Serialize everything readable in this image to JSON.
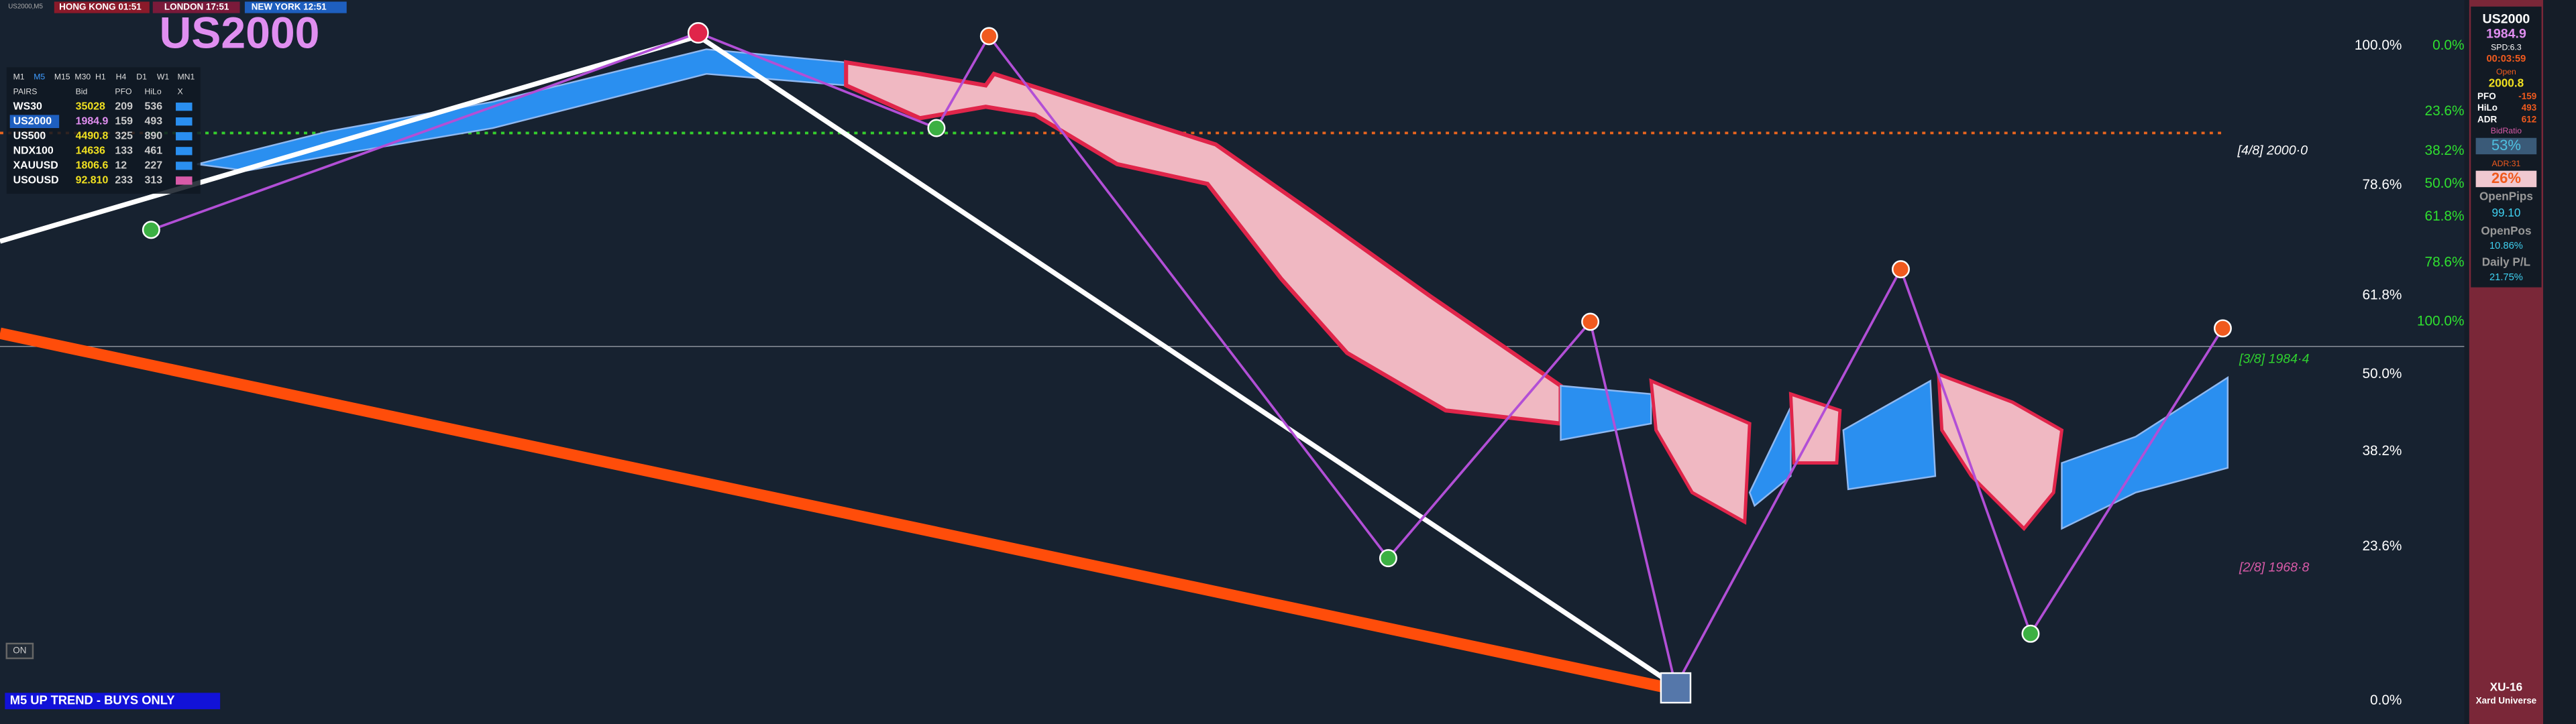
{
  "header": {
    "symbol_tag": "US2000,M5",
    "clocks": [
      "HONG KONG 01:51",
      "LONDON 17:51",
      "NEW YORK 12:51"
    ],
    "title": "US2000"
  },
  "table": {
    "timeframes": [
      "M1",
      "M5",
      "M15",
      "M30",
      "H1",
      "H4",
      "D1",
      "W1",
      "MN1"
    ],
    "columns": [
      "PAIRS",
      "Bid",
      "PFO",
      "HiLo",
      "X"
    ],
    "rows": [
      [
        "WS30",
        "35028",
        "209",
        "536"
      ],
      [
        "US2000",
        "1984.9",
        "159",
        "493"
      ],
      [
        "US500",
        "4490.8",
        "325",
        "890"
      ],
      [
        "NDX100",
        "14636",
        "133",
        "461"
      ],
      [
        "XAUUSD",
        "1806.6",
        "12",
        "227"
      ],
      [
        "USOUSD",
        "92.810",
        "233",
        "313"
      ]
    ]
  },
  "fib_left": [
    "100.0%",
    "78.6%",
    "61.8%",
    "50.0%",
    "38.2%",
    "23.6%",
    "0.0%"
  ],
  "fib_right": [
    "0.0%",
    "23.6%",
    "38.2%",
    "50.0%",
    "61.8%",
    "78.6%",
    "100.0%"
  ],
  "murrey": [
    "[4/8] 2000·0",
    "[3/8] 1984·4",
    "[2/8] 1968·8"
  ],
  "toggle": "ON",
  "trend": "M5 UP TREND - BUYS ONLY",
  "panel": {
    "symbol": "US2000",
    "bid": "1984.9",
    "spread": "SPD:6.3",
    "timer": "00:03:59",
    "open_label": "Open",
    "open": "2000.8",
    "stats": [
      [
        "PFO",
        "-159"
      ],
      [
        "HiLo",
        "493"
      ],
      [
        "ADR",
        "612"
      ]
    ],
    "bidratio_label": "BidRatio",
    "bidratio": "53%",
    "adr_label": "ADR:31",
    "adr_pct": "26%",
    "openpips_label": "OpenPips",
    "openpips": "99.10",
    "openpos_label": "OpenPos",
    "openpos": "10.86%",
    "pl_label": "Daily P/L",
    "pl": "21.75%",
    "brand_code": "XU-16",
    "brand": "Xard Universe"
  }
}
